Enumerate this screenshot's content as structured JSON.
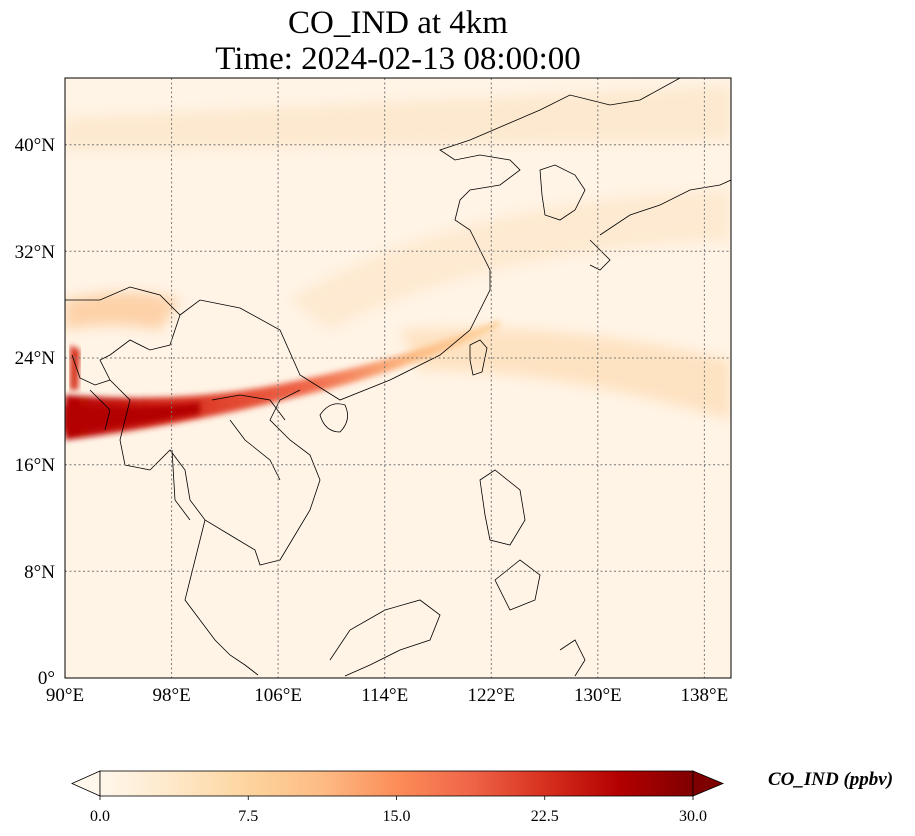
{
  "title": {
    "line1": "CO_IND at 4km",
    "line2": "Time: 2024-02-13 08:00:00"
  },
  "map": {
    "lon_range": [
      90,
      140
    ],
    "lat_range": [
      0,
      45
    ],
    "lon_ticks": [
      "90°E",
      "98°E",
      "106°E",
      "114°E",
      "122°E",
      "130°E",
      "138°E"
    ],
    "lat_ticks": [
      "0°",
      "8°N",
      "16°N",
      "24°N",
      "32°N",
      "40°N"
    ],
    "gridlines": true,
    "coastlines": true,
    "borders": true
  },
  "colorbar": {
    "label": "CO_IND (ppbv)",
    "min": 0.0,
    "max": 30.0,
    "ticks": [
      "0.0",
      "7.5",
      "15.0",
      "22.5",
      "30.0"
    ],
    "colormap": "OrRd",
    "colors": [
      "#fff7ec",
      "#fee8c8",
      "#fdd49e",
      "#fdbb84",
      "#fc8d59",
      "#ef6548",
      "#d7301f",
      "#b30000",
      "#7f0000"
    ],
    "extend": "both"
  }
}
